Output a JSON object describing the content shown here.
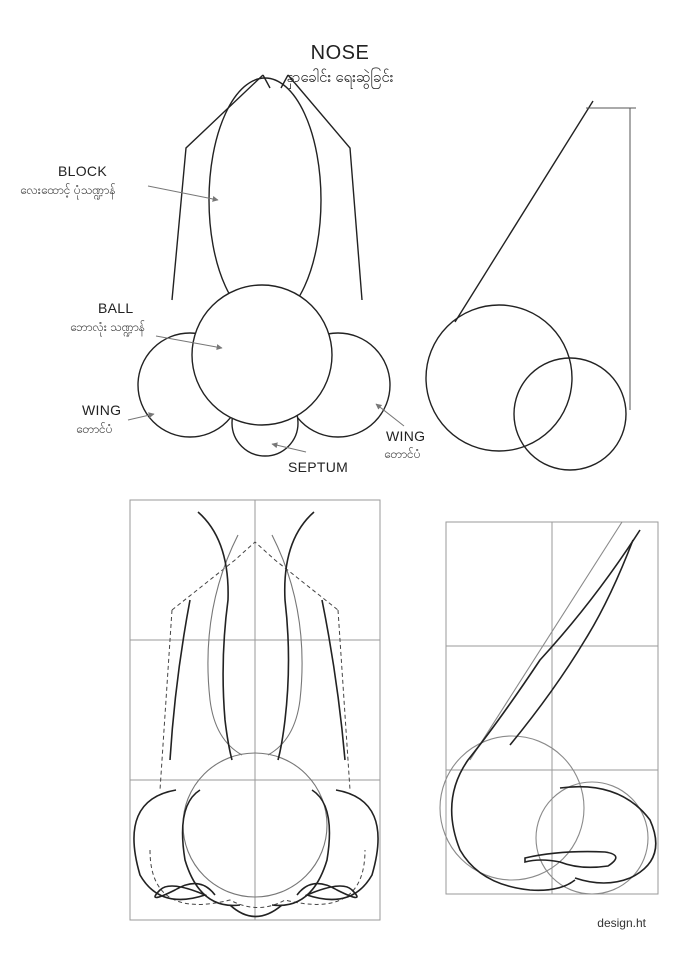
{
  "title": "NOSE",
  "subtitle": "နှာခေါင်း ရေးဆွဲခြင်း",
  "labels": {
    "block": {
      "en": "BLOCK",
      "mm": "လေးထောင့် ပုံသဏ္ဍာန်"
    },
    "ball": {
      "en": "BALL",
      "mm": "ဘောလုံး သဏ္ဍာန်"
    },
    "wing_left": {
      "en": "WING",
      "mm": "တောင်ပံ"
    },
    "wing_right": {
      "en": "WING",
      "mm": "တောင်ပံ"
    },
    "septum": {
      "en": "SEPTUM"
    }
  },
  "credit": "design.ht",
  "colors": {
    "stroke": "#222222",
    "guide": "#9a9a9a",
    "arrow": "#777777"
  }
}
